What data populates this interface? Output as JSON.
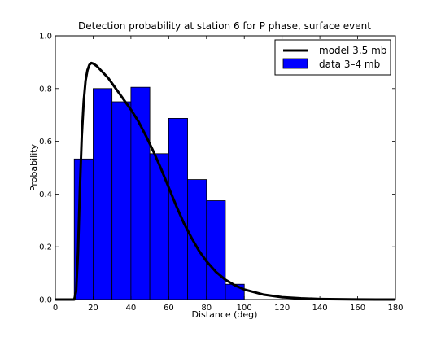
{
  "chart_data": {
    "type": "bar",
    "title": "Detection probability at station 6 for P phase, surface event",
    "xlabel": "Distance (deg)",
    "ylabel": "Probability",
    "xlim": [
      0,
      180
    ],
    "ylim": [
      0.0,
      1.0
    ],
    "xticks": [
      0,
      20,
      40,
      60,
      80,
      100,
      120,
      140,
      160,
      180
    ],
    "xtick_labels": [
      "0",
      "20",
      "40",
      "60",
      "80",
      "100",
      "120",
      "140",
      "160",
      "180"
    ],
    "yticks": [
      0.0,
      0.2,
      0.4,
      0.6,
      0.8,
      1.0
    ],
    "ytick_labels": [
      "0.0",
      "0.2",
      "0.4",
      "0.6",
      "0.8",
      "1.0"
    ],
    "grid": false,
    "legend_position": "top-right",
    "series": [
      {
        "name": "model 3.5 mb",
        "type": "line",
        "color": "#000000",
        "x": [
          0,
          8,
          10,
          11,
          12,
          13,
          14,
          15,
          16,
          17,
          18,
          19,
          20,
          22,
          24,
          26,
          28,
          30,
          33,
          36,
          40,
          44,
          48,
          52,
          56,
          60,
          64,
          68,
          72,
          76,
          80,
          85,
          90,
          95,
          100,
          110,
          120,
          130,
          140,
          150,
          160,
          170,
          180
        ],
        "y": [
          0,
          0,
          0,
          0.03,
          0.18,
          0.42,
          0.62,
          0.75,
          0.83,
          0.87,
          0.89,
          0.897,
          0.895,
          0.885,
          0.87,
          0.855,
          0.84,
          0.82,
          0.79,
          0.76,
          0.72,
          0.675,
          0.62,
          0.56,
          0.495,
          0.425,
          0.355,
          0.29,
          0.235,
          0.185,
          0.145,
          0.105,
          0.075,
          0.054,
          0.038,
          0.019,
          0.009,
          0.0045,
          0.002,
          0.001,
          0.0005,
          0.0002,
          0.0001
        ]
      },
      {
        "name": "data 3–4 mb",
        "type": "bar",
        "color": "#0000ff",
        "bins": [
          10,
          20,
          30,
          40,
          50,
          60,
          70,
          80,
          90,
          100
        ],
        "values": [
          0.533,
          0.8,
          0.75,
          0.805,
          0.553,
          0.687,
          0.455,
          0.375,
          0.058
        ]
      }
    ]
  }
}
